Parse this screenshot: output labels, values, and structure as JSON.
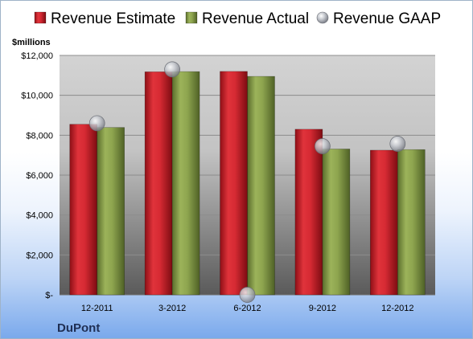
{
  "chart_data": {
    "type": "bar",
    "unit_label": "$millions",
    "company": "DuPont",
    "categories": [
      "12-2011",
      "3-2012",
      "6-2012",
      "9-2012",
      "12-2012"
    ],
    "series": [
      {
        "name": "Revenue Estimate",
        "kind": "bar",
        "color": "#c8232f",
        "values": [
          8550,
          11180,
          11200,
          8300,
          7250
        ]
      },
      {
        "name": "Revenue Actual",
        "kind": "bar",
        "color": "#8aa04e",
        "values": [
          8390,
          11190,
          10950,
          7310,
          7280
        ]
      },
      {
        "name": "Revenue GAAP",
        "kind": "marker",
        "color": "#b9bcc4",
        "values": [
          8600,
          11300,
          0,
          7450,
          7570
        ]
      }
    ],
    "ylim": [
      0,
      12000
    ],
    "yticks": [
      {
        "value": 0,
        "label": "$-"
      },
      {
        "value": 2000,
        "label": "$2,000"
      },
      {
        "value": 4000,
        "label": "$4,000"
      },
      {
        "value": 6000,
        "label": "$6,000"
      },
      {
        "value": 8000,
        "label": "$8,000"
      },
      {
        "value": 10000,
        "label": "$10,000"
      },
      {
        "value": 12000,
        "label": "$12,000"
      }
    ],
    "grid": true,
    "legend_position": "top"
  }
}
